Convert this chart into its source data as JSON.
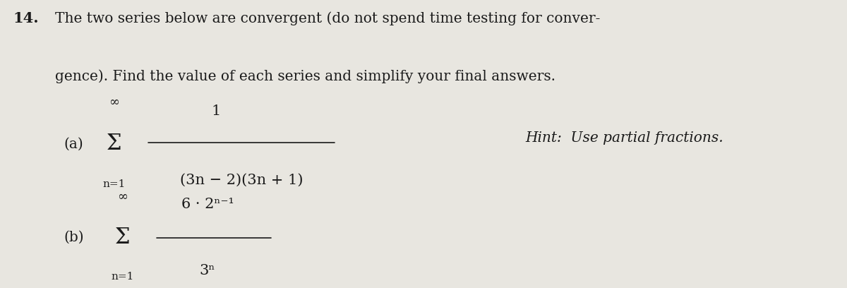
{
  "background_color": "#e8e6e0",
  "fig_width": 12.0,
  "fig_height": 4.08,
  "dpi": 100,
  "problem_number": "14.",
  "intro_line1": "The two series below are convergent (do not spend time testing for conver-",
  "intro_line2": "gence). Find the value of each series and simplify your final answers.",
  "part_a_label": "(a)",
  "part_a_numerator": "1",
  "part_a_denominator": "(3n − 2)(3n + 1)",
  "part_a_sum_top": "∞",
  "part_a_sum_bottom": "n=1",
  "part_a_sigma": "Σ",
  "hint_text": "Hint:  Use partial fractions.",
  "part_b_label": "(b)",
  "part_b_numerator": "6 · 2ⁿ⁻¹",
  "part_b_denominator": "3ⁿ",
  "part_b_sum_top": "∞",
  "part_b_sum_bottom": "n=1",
  "part_b_sigma": "Σ",
  "text_color": "#1a1a1a",
  "font_family": "serif"
}
